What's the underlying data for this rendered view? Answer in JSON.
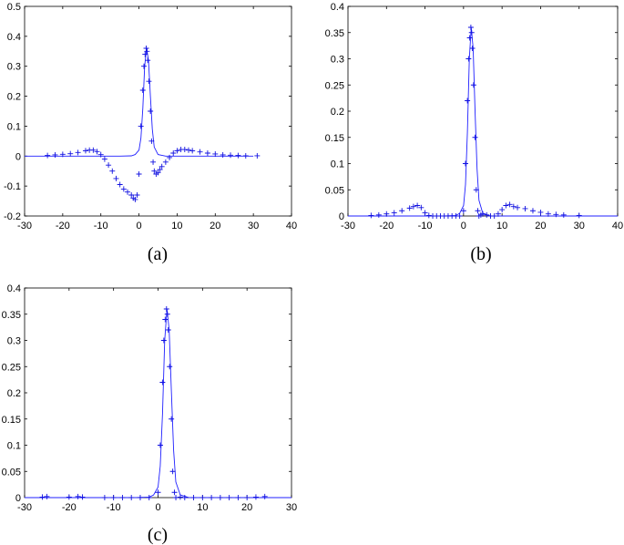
{
  "chart_data": [
    {
      "type": "scatter",
      "caption": "(a)",
      "xlim": [
        -30,
        40
      ],
      "ylim": [
        -0.2,
        0.5
      ],
      "xticks": [
        -30,
        -20,
        -10,
        0,
        10,
        20,
        30,
        40
      ],
      "yticks": [
        -0.2,
        -0.1,
        0,
        0.1,
        0.2,
        0.3,
        0.4,
        0.5
      ],
      "grid": false,
      "curve": {
        "x": [
          -30,
          -10,
          -5,
          -2,
          -1,
          0,
          0.5,
          1,
          1.5,
          2,
          2.5,
          3,
          3.5,
          4,
          5,
          7,
          10,
          20,
          30
        ],
        "y": [
          0,
          0,
          0,
          0.001,
          0.005,
          0.02,
          0.06,
          0.16,
          0.3,
          0.36,
          0.32,
          0.2,
          0.09,
          0.03,
          0.005,
          0,
          0,
          0,
          0
        ]
      },
      "markers": {
        "x": [
          -24,
          -22,
          -20,
          -18,
          -16,
          -14,
          -13,
          -12,
          -11,
          -10,
          -9,
          -8,
          -7,
          -6,
          -5,
          -4,
          -3,
          -2,
          -1.5,
          -1,
          -0.5,
          0,
          0.5,
          1,
          1.3,
          1.6,
          1.9,
          2.1,
          2.3,
          2.6,
          3,
          3.3,
          3.7,
          4,
          4.5,
          5,
          5.5,
          6,
          7,
          8,
          9,
          10,
          11,
          12,
          13,
          14,
          16,
          18,
          20,
          22,
          24,
          26,
          28,
          31
        ],
        "y": [
          0.002,
          0.004,
          0.006,
          0.008,
          0.012,
          0.018,
          0.02,
          0.02,
          0.015,
          0.005,
          -0.01,
          -0.03,
          -0.05,
          -0.075,
          -0.095,
          -0.11,
          -0.12,
          -0.13,
          -0.14,
          -0.145,
          -0.13,
          -0.06,
          0.1,
          0.22,
          0.3,
          0.34,
          0.36,
          0.35,
          0.32,
          0.25,
          0.15,
          0.05,
          -0.02,
          -0.05,
          -0.06,
          -0.055,
          -0.045,
          -0.035,
          -0.02,
          -0.005,
          0.01,
          0.018,
          0.022,
          0.022,
          0.02,
          0.018,
          0.014,
          0.01,
          0.007,
          0.004,
          0.003,
          0.002,
          0.001,
          0.001
        ]
      }
    },
    {
      "type": "scatter",
      "caption": "(b)",
      "xlim": [
        -30,
        40
      ],
      "ylim": [
        0,
        0.4
      ],
      "xticks": [
        -30,
        -20,
        -10,
        0,
        10,
        20,
        30,
        40
      ],
      "yticks": [
        0,
        0.05,
        0.1,
        0.15,
        0.2,
        0.25,
        0.3,
        0.35,
        0.4
      ],
      "grid": false,
      "curve": {
        "x": [
          -30,
          -10,
          -5,
          -2,
          -1,
          0,
          0.5,
          1,
          1.5,
          2,
          2.5,
          3,
          3.5,
          4,
          5,
          7,
          10,
          20,
          40
        ],
        "y": [
          0,
          0,
          0,
          0.001,
          0.005,
          0.02,
          0.06,
          0.16,
          0.3,
          0.36,
          0.32,
          0.2,
          0.09,
          0.03,
          0.005,
          0,
          0,
          0,
          0
        ]
      },
      "markers": {
        "x": [
          -24,
          -22,
          -20,
          -18,
          -16,
          -14,
          -13,
          -12,
          -11,
          -10,
          -9,
          -8,
          -7,
          -6,
          -5,
          -4,
          -3,
          -2,
          -1,
          0,
          0.5,
          1,
          1.3,
          1.6,
          1.9,
          2.1,
          2.3,
          2.6,
          3,
          3.3,
          3.7,
          4,
          4.5,
          5,
          6,
          7,
          8,
          9,
          10,
          11,
          12,
          13,
          14,
          16,
          18,
          20,
          22,
          24,
          26,
          30
        ],
        "y": [
          0.001,
          0.002,
          0.004,
          0.006,
          0.01,
          0.015,
          0.018,
          0.02,
          0.016,
          0.006,
          0.001,
          0,
          0,
          0,
          0,
          0,
          0,
          0,
          0,
          0.01,
          0.1,
          0.22,
          0.3,
          0.34,
          0.36,
          0.35,
          0.32,
          0.25,
          0.15,
          0.05,
          0.01,
          0,
          0.002,
          0.004,
          0.002,
          0,
          0,
          0.004,
          0.012,
          0.02,
          0.022,
          0.018,
          0.016,
          0.014,
          0.01,
          0.007,
          0.004,
          0.003,
          0.002,
          0.001
        ]
      }
    },
    {
      "type": "scatter",
      "caption": "(c)",
      "xlim": [
        -30,
        30
      ],
      "ylim": [
        0,
        0.4
      ],
      "xticks": [
        -30,
        -20,
        -10,
        0,
        10,
        20,
        30
      ],
      "yticks": [
        0,
        0.05,
        0.1,
        0.15,
        0.2,
        0.25,
        0.3,
        0.35,
        0.4
      ],
      "grid": false,
      "curve": {
        "x": [
          -30,
          -10,
          -5,
          -2,
          -1,
          0,
          0.5,
          1,
          1.5,
          2,
          2.5,
          3,
          3.5,
          4,
          5,
          7,
          10,
          20,
          30
        ],
        "y": [
          0,
          0,
          0,
          0.001,
          0.005,
          0.02,
          0.06,
          0.16,
          0.3,
          0.36,
          0.32,
          0.2,
          0.09,
          0.03,
          0.005,
          0,
          0,
          0,
          0
        ]
      },
      "markers": {
        "x": [
          -26,
          -25,
          -20,
          -18,
          -17,
          -12,
          -10,
          -8,
          -6,
          -4,
          -2,
          0,
          0.5,
          1,
          1.3,
          1.6,
          1.9,
          2.1,
          2.3,
          2.6,
          3,
          3.3,
          3.7,
          4,
          5,
          6,
          8,
          10,
          12,
          14,
          16,
          18,
          20,
          22,
          24
        ],
        "y": [
          0.001,
          0.002,
          0.001,
          0.002,
          0.001,
          0,
          0,
          0,
          0,
          0,
          0,
          0.01,
          0.1,
          0.22,
          0.3,
          0.34,
          0.36,
          0.35,
          0.32,
          0.25,
          0.15,
          0.05,
          0.01,
          0,
          0.001,
          0,
          0,
          0,
          0,
          0,
          0,
          0,
          0,
          0.001,
          0.002
        ]
      }
    }
  ]
}
